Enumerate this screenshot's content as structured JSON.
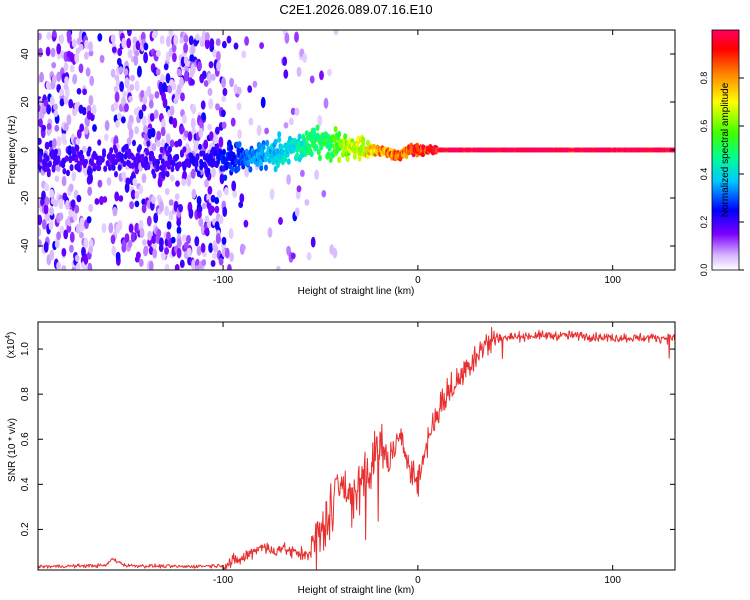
{
  "figure": {
    "title": "C2E1.2026.089.07.16.E10"
  },
  "chart_data": [
    {
      "type": "heatmap",
      "title": "C2E1.2026.089.07.16.E10",
      "xlabel": "Height of straight line (km)",
      "ylabel": "Frequency (Hz)",
      "xlim": [
        -195,
        132
      ],
      "ylim": [
        -50,
        50
      ],
      "x_ticks": [
        -100,
        0,
        100
      ],
      "x_tick_labels": [
        "-100",
        "0",
        "100"
      ],
      "y_ticks": [
        -40,
        -20,
        0,
        20,
        40
      ],
      "y_tick_labels": [
        "-40",
        "-20",
        "0",
        "20",
        "40"
      ],
      "ridge": {
        "description_points_x": [
          -170,
          -150,
          -120,
          -100,
          -90,
          -80,
          -70,
          -60,
          -55,
          -50,
          -45,
          -40,
          -35,
          -30,
          -25,
          -20,
          -15,
          -12,
          -10,
          -7,
          -4,
          0,
          5,
          10,
          20,
          50,
          100,
          132
        ],
        "frequency_hz": [
          -4,
          -3,
          -5,
          -4,
          -3,
          -2,
          -1,
          2,
          3,
          4,
          3,
          2,
          1,
          1,
          0,
          0,
          -1,
          -2,
          -3,
          -1,
          0,
          0,
          0,
          0,
          0,
          0,
          0,
          0
        ],
        "normalized_amplitude": [
          0.2,
          0.2,
          0.2,
          0.25,
          0.3,
          0.35,
          0.4,
          0.45,
          0.5,
          0.5,
          0.55,
          0.6,
          0.65,
          0.7,
          0.75,
          0.8,
          0.85,
          0.85,
          0.85,
          0.85,
          0.9,
          0.95,
          0.95,
          1.0,
          1.0,
          1.0,
          1.0,
          1.0
        ]
      },
      "colorbar": {
        "label": "Normalized spectral amplitude",
        "range": [
          0,
          1
        ],
        "ticks": [
          0.0,
          0.2,
          0.4,
          0.6,
          0.8
        ],
        "tick_labels": [
          "0.0",
          "0.2",
          "0.4",
          "0.6",
          "0.8"
        ]
      }
    },
    {
      "type": "line",
      "xlabel": "Height of straight line (km)",
      "ylabel": "SNR (10 * v/v)",
      "y_scale_label": "(x10",
      "y_scale_exp": "4",
      "y_scale_close": ")",
      "xlim": [
        -195,
        132
      ],
      "ylim": [
        0.02,
        1.12
      ],
      "x_ticks": [
        -100,
        0,
        100
      ],
      "x_tick_labels": [
        "-100",
        "0",
        "100"
      ],
      "y_ticks": [
        0.2,
        0.4,
        0.6,
        0.8,
        1.0
      ],
      "y_tick_labels": [
        "0.2",
        "0.4",
        "0.6",
        "0.8",
        "1.0"
      ],
      "series": [
        {
          "name": "SNR",
          "color": "#e83030",
          "x": [
            -195,
            -160,
            -157,
            -150,
            -120,
            -100,
            -90,
            -85,
            -80,
            -75,
            -70,
            -65,
            -60,
            -55,
            -50,
            -45,
            -42,
            -40,
            -38,
            -35,
            -30,
            -25,
            -20,
            -15,
            -10,
            -5,
            0,
            5,
            10,
            15,
            20,
            25,
            30,
            35,
            40,
            60,
            80,
            100,
            120,
            132
          ],
          "y": [
            0.035,
            0.04,
            0.07,
            0.04,
            0.035,
            0.04,
            0.07,
            0.1,
            0.13,
            0.1,
            0.12,
            0.1,
            0.09,
            0.1,
            0.18,
            0.28,
            0.42,
            0.45,
            0.4,
            0.35,
            0.4,
            0.48,
            0.56,
            0.5,
            0.6,
            0.52,
            0.4,
            0.6,
            0.72,
            0.8,
            0.85,
            0.92,
            0.98,
            1.02,
            1.05,
            1.06,
            1.06,
            1.05,
            1.05,
            1.05
          ]
        }
      ]
    }
  ],
  "colors": {
    "snr_line": "#e83030",
    "axis": "#000000"
  }
}
